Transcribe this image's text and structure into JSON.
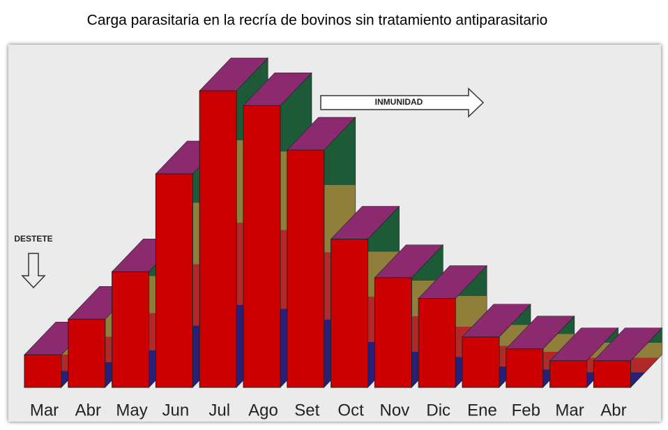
{
  "chart_data": {
    "type": "bar3d",
    "title": "Carga parasitaria en la recría de bovinos sin tratamiento antiparasitario",
    "annotations": [
      "DESTETE",
      "INMUNIDAD"
    ],
    "categories": [
      "Mar",
      "Abr",
      "May",
      "Jun",
      "Jul",
      "Ago",
      "Set",
      "Oct",
      "Nov",
      "Dic",
      "Ene",
      "Feb",
      "Mar",
      "Abr"
    ],
    "values": [
      11,
      23,
      39,
      72,
      100,
      95,
      80,
      50,
      37,
      30,
      17,
      13,
      9,
      9
    ],
    "color": "#cc0000",
    "ylim": [
      0,
      100
    ]
  }
}
